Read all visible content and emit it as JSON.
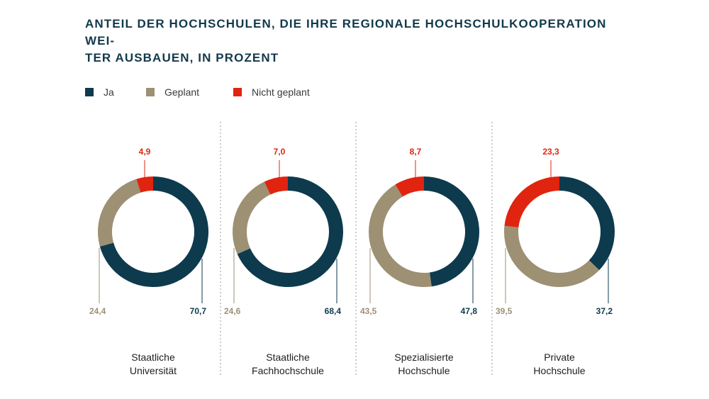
{
  "title": {
    "line1": "ANTEIL DER HOCHSCHULEN, DIE IHRE REGIONALE HOCHSCHULKOOPERATION WEI-",
    "line2": "TER AUSBAUEN, IN PROZENT"
  },
  "colors": {
    "ja": "#0e3a4d",
    "geplant": "#9d9073",
    "nicht_geplant": "#e0240f",
    "divider": "#9a9a9a"
  },
  "legend": [
    {
      "key": "ja",
      "label": "Ja"
    },
    {
      "key": "geplant",
      "label": "Geplant"
    },
    {
      "key": "nicht_geplant",
      "label": "Nicht geplant"
    }
  ],
  "chart_data": {
    "type": "pie",
    "variant": "donut",
    "title": "ANTEIL DER HOCHSCHULEN, DIE IHRE REGIONALE HOCHSCHULKOOPERATION WEITER AUSBAUEN, IN PROZENT",
    "series_names": [
      "Ja",
      "Geplant",
      "Nicht geplant"
    ],
    "charts": [
      {
        "category": [
          "Staatliche",
          "Universität"
        ],
        "ja": 70.7,
        "geplant": 24.4,
        "nicht_geplant": 4.9,
        "labels": {
          "ja": "70,7",
          "geplant": "24,4",
          "nicht_geplant": "4,9"
        }
      },
      {
        "category": [
          "Staatliche",
          "Fachhochschule"
        ],
        "ja": 68.4,
        "geplant": 24.6,
        "nicht_geplant": 7.0,
        "labels": {
          "ja": "68,4",
          "geplant": "24,6",
          "nicht_geplant": "7,0"
        }
      },
      {
        "category": [
          "Spezialisierte",
          "Hochschule"
        ],
        "ja": 47.8,
        "geplant": 43.5,
        "nicht_geplant": 8.7,
        "labels": {
          "ja": "47,8",
          "geplant": "43,5",
          "nicht_geplant": "8,7"
        }
      },
      {
        "category": [
          "Private",
          "Hochschule"
        ],
        "ja": 37.2,
        "geplant": 39.5,
        "nicht_geplant": 23.3,
        "labels": {
          "ja": "37,2",
          "geplant": "39,5",
          "nicht_geplant": "23,3"
        }
      }
    ]
  }
}
